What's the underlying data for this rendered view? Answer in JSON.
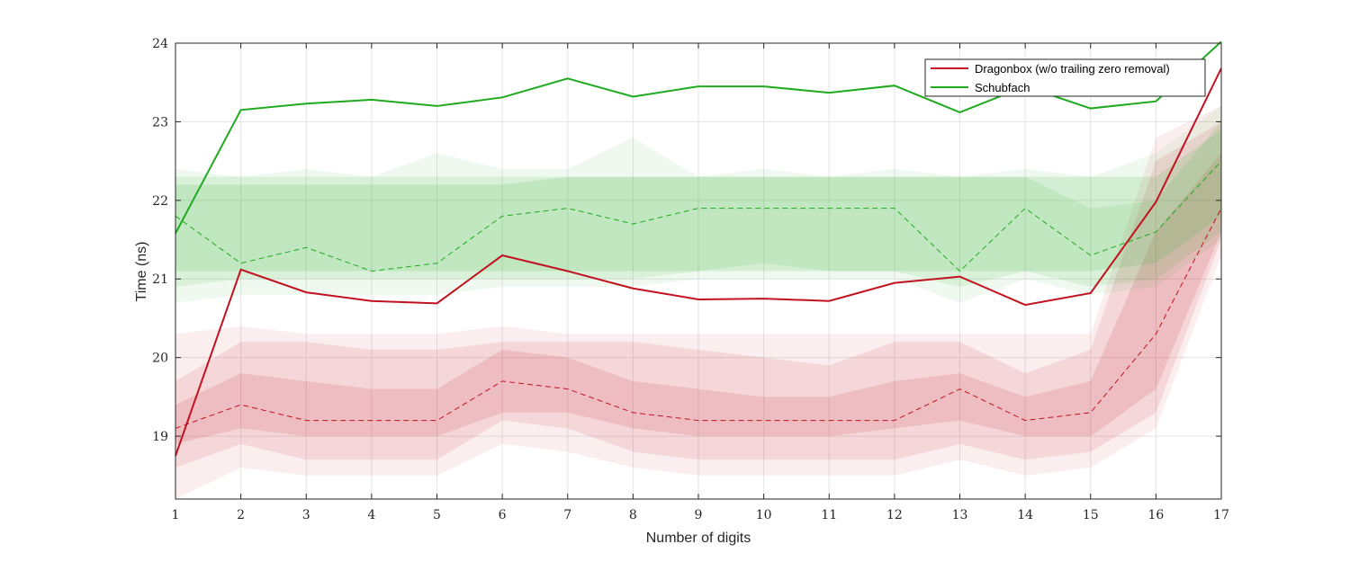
{
  "chart_data": {
    "type": "line",
    "xlabel": "Number of digits",
    "ylabel": "Time (ns)",
    "x": [
      1,
      2,
      3,
      4,
      5,
      6,
      7,
      8,
      9,
      10,
      11,
      12,
      13,
      14,
      15,
      16,
      17
    ],
    "xlim": [
      1,
      17
    ],
    "ylim": [
      18.2,
      24.0
    ],
    "yticks": [
      19,
      20,
      21,
      22,
      23,
      24
    ],
    "grid": true,
    "legend_position": "top-right",
    "series": [
      {
        "name": "Dragonbox (w/o trailing zero removal)",
        "color": "#c1121f",
        "mean": [
          18.75,
          21.12,
          20.83,
          20.72,
          20.69,
          21.3,
          21.1,
          20.88,
          20.74,
          20.75,
          20.72,
          20.95,
          21.03,
          20.67,
          20.82,
          21.98,
          23.68
        ],
        "median": [
          19.1,
          19.4,
          19.2,
          19.2,
          19.2,
          19.7,
          19.6,
          19.3,
          19.2,
          19.2,
          19.2,
          19.2,
          19.6,
          19.2,
          19.3,
          20.3,
          21.9
        ],
        "bands": [
          {
            "lower": [
              18.2,
              18.6,
              18.5,
              18.5,
              18.5,
              18.9,
              18.8,
              18.6,
              18.5,
              18.5,
              18.5,
              18.5,
              18.7,
              18.5,
              18.6,
              19.1,
              21.3
            ],
            "upper": [
              20.3,
              20.4,
              20.3,
              20.3,
              20.3,
              20.4,
              20.3,
              20.3,
              20.3,
              20.3,
              20.3,
              20.3,
              20.3,
              20.3,
              20.3,
              22.8,
              23.2
            ]
          },
          {
            "lower": [
              18.6,
              18.9,
              18.7,
              18.7,
              18.7,
              19.2,
              19.1,
              18.8,
              18.7,
              18.7,
              18.7,
              18.7,
              18.9,
              18.7,
              18.8,
              19.3,
              21.5
            ],
            "upper": [
              19.7,
              20.2,
              20.2,
              20.1,
              20.1,
              20.2,
              20.2,
              20.2,
              20.1,
              20.0,
              19.9,
              20.2,
              20.2,
              19.8,
              20.1,
              22.5,
              23.0
            ]
          },
          {
            "lower": [
              18.9,
              19.1,
              19.0,
              19.0,
              19.0,
              19.3,
              19.3,
              19.1,
              19.0,
              19.0,
              19.0,
              19.1,
              19.2,
              19.0,
              19.0,
              19.6,
              21.6
            ],
            "upper": [
              19.4,
              19.8,
              19.7,
              19.6,
              19.6,
              20.1,
              20.0,
              19.7,
              19.6,
              19.5,
              19.5,
              19.7,
              19.8,
              19.5,
              19.7,
              21.6,
              22.6
            ]
          }
        ]
      },
      {
        "name": "Schubfach",
        "color": "#1faa1f",
        "mean": [
          21.58,
          23.15,
          23.23,
          23.28,
          23.2,
          23.31,
          23.55,
          23.32,
          23.45,
          23.45,
          23.37,
          23.46,
          23.12,
          23.45,
          23.17,
          23.26,
          24.02
        ],
        "median": [
          21.8,
          21.2,
          21.4,
          21.1,
          21.2,
          21.8,
          21.9,
          21.7,
          21.9,
          21.9,
          21.9,
          21.9,
          21.1,
          21.9,
          21.3,
          21.6,
          22.5
        ],
        "bands": [
          {
            "lower": [
              20.7,
              20.8,
              20.8,
              20.8,
              20.8,
              20.9,
              20.9,
              20.9,
              21.0,
              21.0,
              21.0,
              21.0,
              20.7,
              21.0,
              20.8,
              20.9,
              21.5
            ],
            "upper": [
              22.4,
              22.3,
              22.4,
              22.3,
              22.6,
              22.4,
              22.4,
              22.8,
              22.3,
              22.4,
              22.3,
              22.4,
              22.3,
              22.4,
              22.3,
              22.6,
              23.2
            ]
          },
          {
            "lower": [
              20.9,
              21.0,
              21.0,
              21.0,
              21.0,
              21.0,
              21.0,
              21.0,
              21.1,
              21.2,
              21.1,
              21.1,
              20.9,
              21.1,
              20.9,
              21.0,
              21.6
            ],
            "upper": [
              22.3,
              22.3,
              22.3,
              22.3,
              22.3,
              22.3,
              22.3,
              22.3,
              22.3,
              22.3,
              22.3,
              22.3,
              22.3,
              22.3,
              21.9,
              22.0,
              23.0
            ]
          },
          {
            "lower": [
              21.1,
              21.1,
              21.1,
              21.1,
              21.1,
              21.1,
              21.1,
              21.1,
              21.1,
              21.1,
              21.1,
              21.1,
              21.1,
              21.1,
              21.1,
              21.2,
              21.8
            ],
            "upper": [
              22.2,
              22.2,
              22.2,
              22.2,
              22.2,
              22.2,
              22.3,
              22.3,
              22.3,
              22.3,
              22.3,
              22.3,
              22.3,
              22.3,
              22.3,
              22.3,
              22.9
            ]
          }
        ]
      }
    ]
  }
}
